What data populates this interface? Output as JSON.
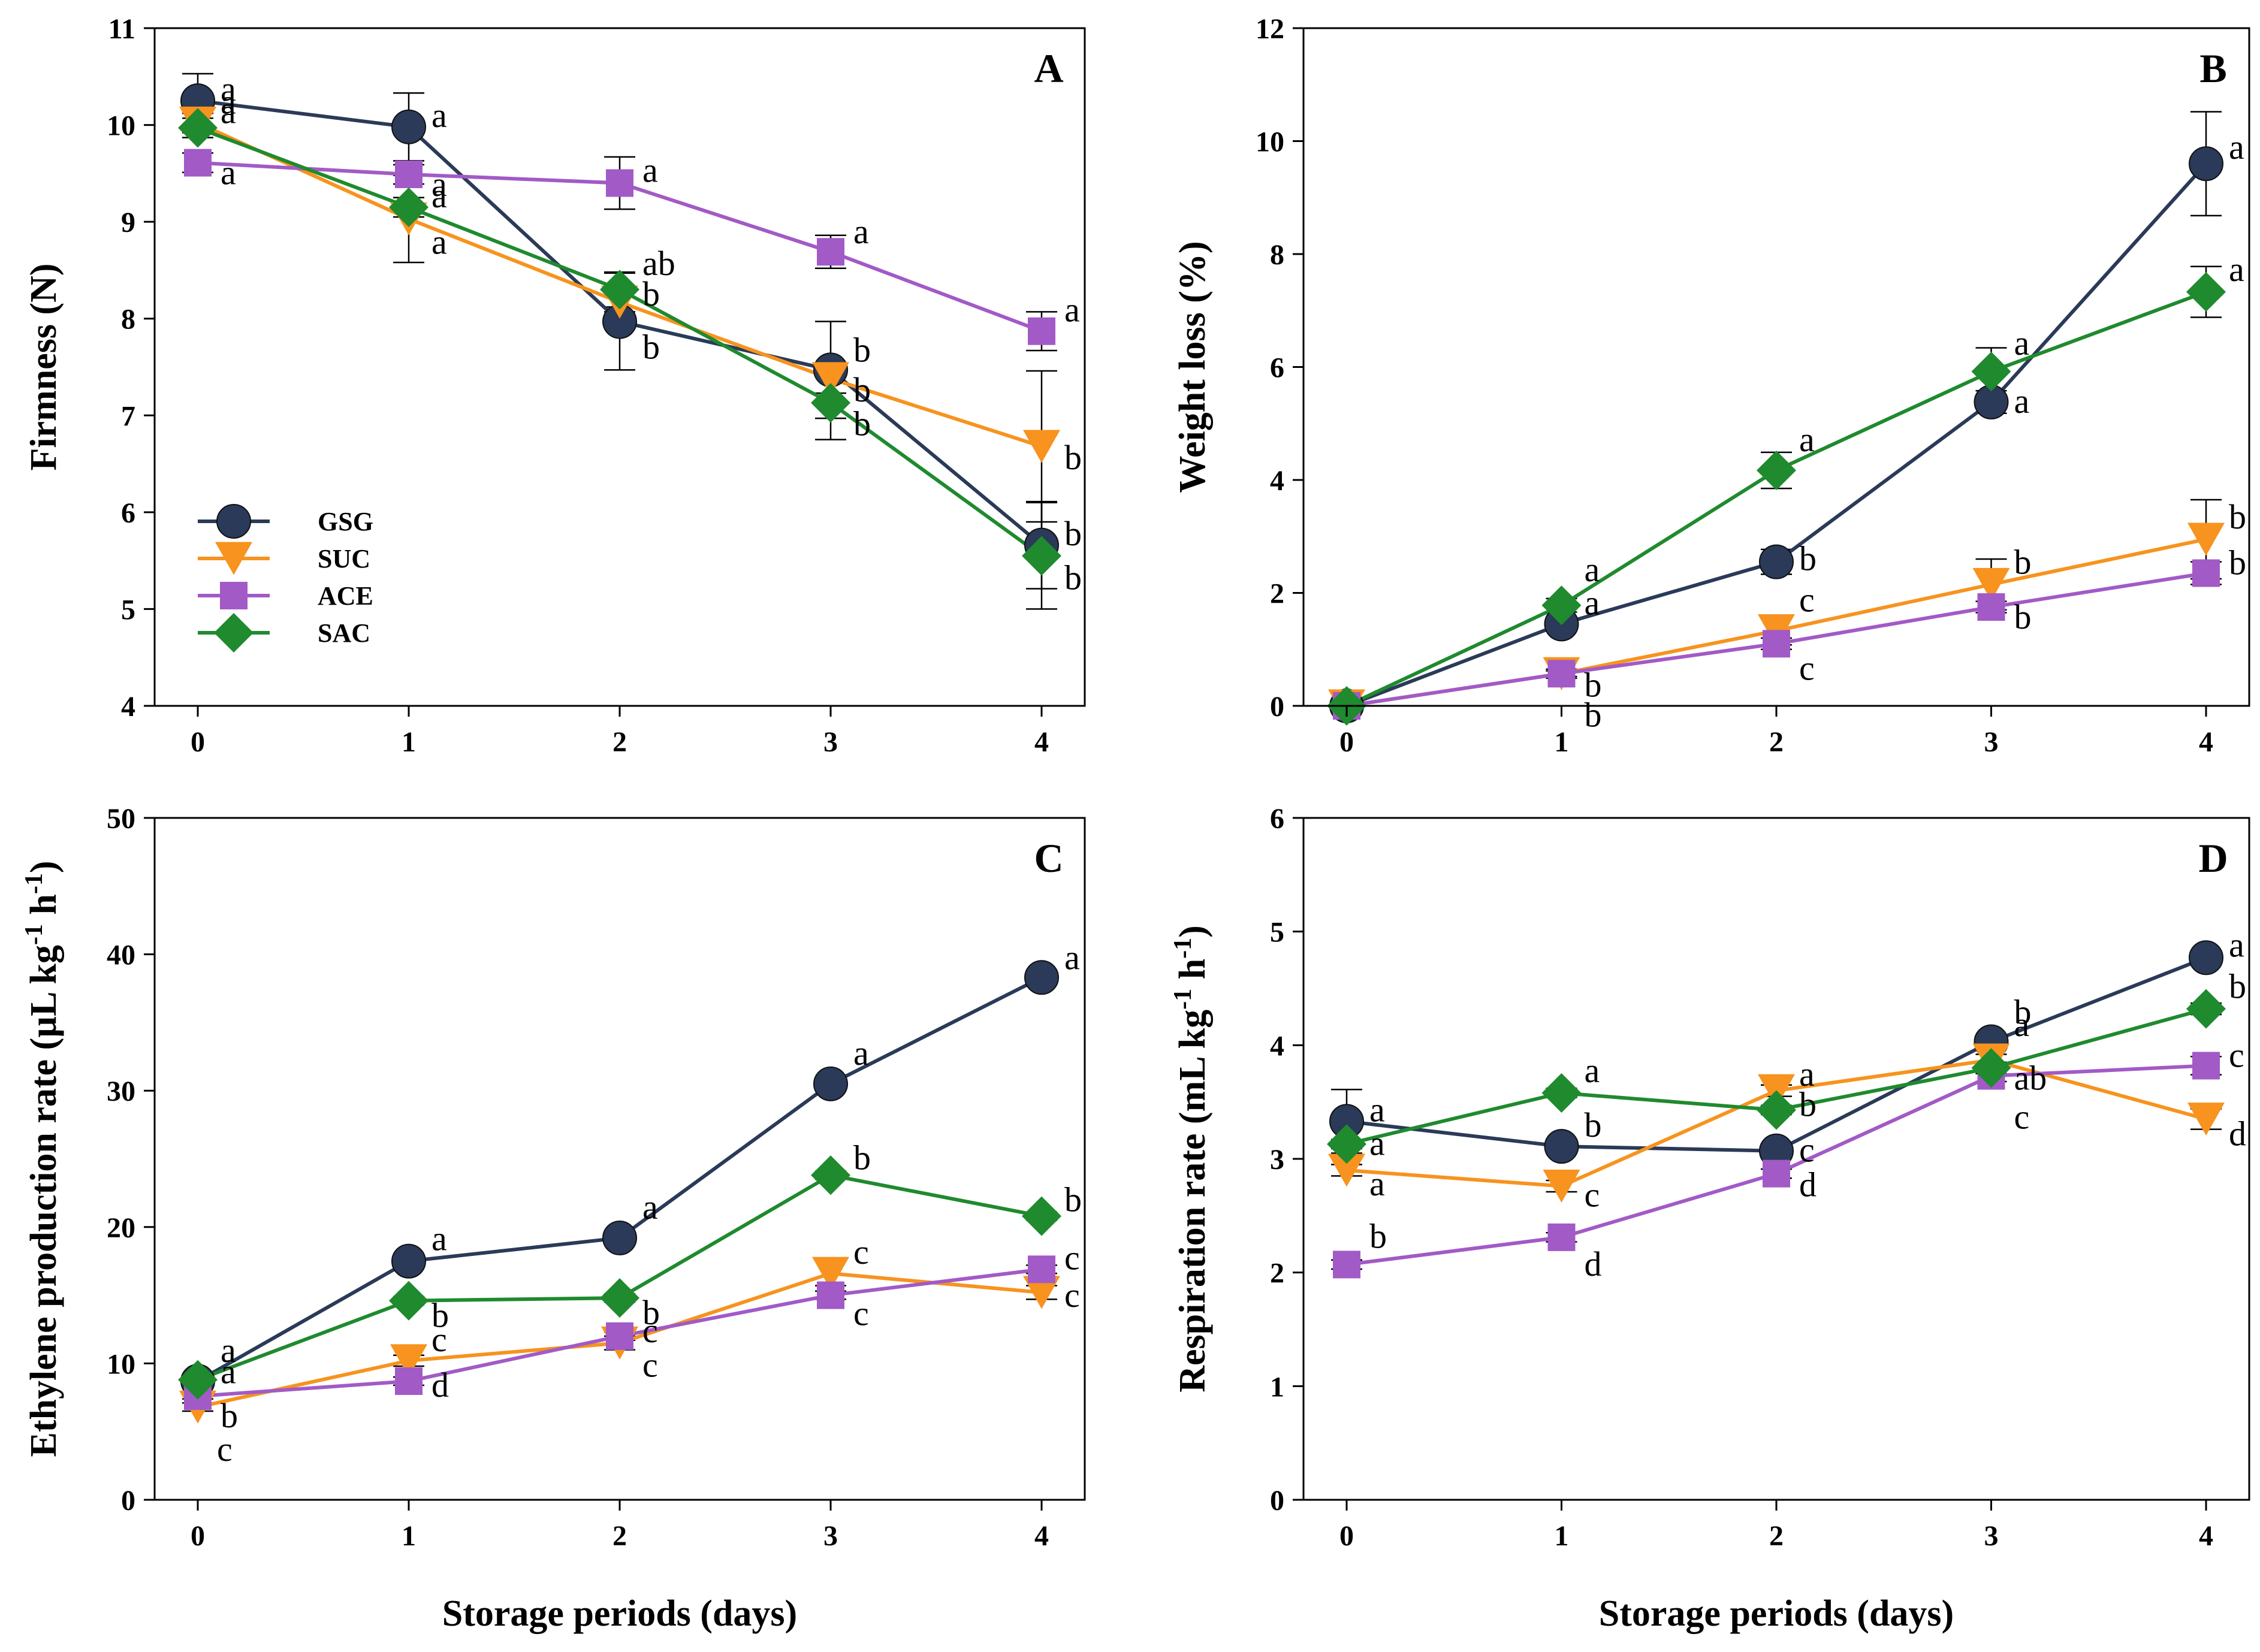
{
  "colors": {
    "GSG": "#2a3a58",
    "SUC": "#f7931e",
    "ACE": "#a25ac6",
    "SAC": "#1f8a2e"
  },
  "legend": [
    {
      "key": "GSG",
      "label": "GSG",
      "marker": "circle"
    },
    {
      "key": "SUC",
      "label": "SUC",
      "marker": "triangle-down"
    },
    {
      "key": "ACE",
      "label": "ACE",
      "marker": "square"
    },
    {
      "key": "SAC",
      "label": "SAC",
      "marker": "diamond"
    }
  ],
  "chart_data": [
    {
      "id": "A",
      "type": "line",
      "panel_letter": "A",
      "xlabel": "",
      "ylabel": "Firmness (N)",
      "x": [
        0,
        1,
        2,
        3,
        4
      ],
      "x_ticks": [
        "0",
        "1",
        "2",
        "3",
        "4"
      ],
      "ylim": [
        4,
        11
      ],
      "y_ticks": [
        4,
        5,
        6,
        7,
        8,
        9,
        10,
        11
      ],
      "series": [
        {
          "name": "GSG",
          "values": [
            10.25,
            9.98,
            7.97,
            7.47,
            5.66
          ],
          "errors": [
            0.28,
            0.35,
            0.5,
            0.5,
            0.45
          ],
          "letters": [
            "a",
            "a",
            "b",
            "b",
            "b"
          ]
        },
        {
          "name": "SUC",
          "values": [
            10.02,
            9.03,
            8.17,
            7.38,
            6.68
          ],
          "errors": [
            0.1,
            0.45,
            0.1,
            0.15,
            0.78
          ],
          "letters": [
            "a",
            "a",
            "b",
            "b",
            "b"
          ]
        },
        {
          "name": "ACE",
          "values": [
            9.61,
            9.49,
            9.4,
            8.69,
            7.87
          ],
          "errors": [
            0.1,
            0.1,
            0.27,
            0.17,
            0.2
          ],
          "letters": [
            "a",
            "a",
            "a",
            "a",
            "a"
          ]
        },
        {
          "name": "SAC",
          "values": [
            9.97,
            9.15,
            8.3,
            7.13,
            5.55
          ],
          "errors": [
            0.1,
            0.1,
            0.18,
            0.38,
            0.55
          ],
          "letters": [
            "a",
            "a",
            "ab",
            "b",
            "b"
          ]
        }
      ]
    },
    {
      "id": "B",
      "type": "line",
      "panel_letter": "B",
      "xlabel": "",
      "ylabel": "Weight loss (%)",
      "x": [
        0,
        1,
        2,
        3,
        4
      ],
      "x_ticks": [
        "0",
        "1",
        "2",
        "3",
        "4"
      ],
      "ylim": [
        0,
        12
      ],
      "y_ticks": [
        0,
        2,
        4,
        6,
        8,
        10,
        12
      ],
      "series": [
        {
          "name": "GSG",
          "values": [
            0,
            1.45,
            2.55,
            5.38,
            9.6
          ],
          "errors": [
            0,
            0.1,
            0.22,
            0.2,
            0.92
          ],
          "letters": [
            "",
            "a",
            "b",
            "a",
            "a"
          ]
        },
        {
          "name": "SUC",
          "values": [
            0,
            0.57,
            1.33,
            2.15,
            2.95
          ],
          "errors": [
            0,
            0.08,
            0.25,
            0.45,
            0.7
          ],
          "letters": [
            "",
            "b",
            "c",
            "b",
            "b"
          ]
        },
        {
          "name": "ACE",
          "values": [
            0,
            0.57,
            1.1,
            1.75,
            2.35
          ],
          "errors": [
            0,
            0.05,
            0.1,
            0.1,
            0.2
          ],
          "letters": [
            "",
            "b",
            "c",
            "b",
            "b"
          ]
        },
        {
          "name": "SAC",
          "values": [
            0,
            1.78,
            4.17,
            5.92,
            7.33
          ],
          "errors": [
            0,
            0.12,
            0.32,
            0.42,
            0.45
          ],
          "letters": [
            "",
            "a",
            "a",
            "a",
            "a"
          ]
        }
      ]
    },
    {
      "id": "C",
      "type": "line",
      "panel_letter": "C",
      "xlabel": "Storage periods (days)",
      "ylabel": "Ethylene production rate (µL kg-1 h-1)",
      "ylabel_parts": {
        "prefix": "Ethylene production rate (µL kg",
        "sup1": "-1",
        "mid": " h",
        "sup2": "-1",
        "suffix": ")"
      },
      "x": [
        0,
        1,
        2,
        3,
        4
      ],
      "x_ticks": [
        "0",
        "1",
        "2",
        "3",
        "4"
      ],
      "ylim": [
        0,
        50
      ],
      "y_ticks": [
        0,
        10,
        20,
        30,
        40,
        50
      ],
      "series": [
        {
          "name": "GSG",
          "values": [
            8.7,
            17.5,
            19.2,
            30.5,
            38.3
          ],
          "errors": [
            0.3,
            0.3,
            0.3,
            0.3,
            0.3
          ],
          "letters": [
            "a",
            "a",
            "a",
            "a",
            "a"
          ]
        },
        {
          "name": "SUC",
          "values": [
            6.8,
            10.2,
            11.5,
            16.6,
            15.2
          ],
          "errors": [
            0.3,
            0.4,
            0.5,
            0.9,
            0.5
          ],
          "letters": [
            "c",
            "c",
            "c",
            "c",
            "c"
          ]
        },
        {
          "name": "ACE",
          "values": [
            7.6,
            8.7,
            12.0,
            15.0,
            16.9
          ],
          "errors": [
            0.2,
            0.3,
            0.3,
            0.3,
            0.3
          ],
          "letters": [
            "b",
            "d",
            "c",
            "c",
            "c"
          ]
        },
        {
          "name": "SAC",
          "values": [
            8.8,
            14.6,
            14.8,
            23.8,
            20.8
          ],
          "errors": [
            0.2,
            0.3,
            0.3,
            0.3,
            0.3
          ],
          "letters": [
            "a",
            "b",
            "b",
            "b",
            "b"
          ]
        }
      ]
    },
    {
      "id": "D",
      "type": "line",
      "panel_letter": "D",
      "xlabel": "Storage periods (days)",
      "ylabel": "Respiration rate (mL kg-1 h-1)",
      "ylabel_parts": {
        "prefix": "Respiration rate (mL kg",
        "sup1": "-1",
        "mid": " h",
        "sup2": "-1",
        "suffix": ")"
      },
      "x": [
        0,
        1,
        2,
        3,
        4
      ],
      "x_ticks": [
        "0",
        "1",
        "2",
        "3",
        "4"
      ],
      "ylim": [
        0,
        6
      ],
      "y_ticks": [
        0,
        1,
        2,
        3,
        4,
        5,
        6
      ],
      "series": [
        {
          "name": "GSG",
          "values": [
            3.33,
            3.11,
            3.07,
            4.03,
            4.77
          ],
          "errors": [
            0.28,
            0.04,
            0.04,
            0.05,
            0.05
          ],
          "letters": [
            "a",
            "b",
            "c",
            "b",
            "a"
          ]
        },
        {
          "name": "SUC",
          "values": [
            2.9,
            2.76,
            3.6,
            3.87,
            3.35
          ],
          "errors": [
            0.05,
            0.05,
            0.05,
            0.05,
            0.09
          ],
          "letters": [
            "a",
            "c",
            "a",
            "a",
            "d"
          ]
        },
        {
          "name": "ACE",
          "values": [
            2.07,
            2.31,
            2.87,
            3.73,
            3.82
          ],
          "errors": [
            0.04,
            0.04,
            0.04,
            0.05,
            0.08
          ],
          "letters": [
            "b",
            "d",
            "d",
            "c",
            "c"
          ]
        },
        {
          "name": "SAC",
          "values": [
            3.13,
            3.58,
            3.43,
            3.8,
            4.32
          ],
          "errors": [
            0.04,
            0.04,
            0.04,
            0.05,
            0.05
          ],
          "letters": [
            "a",
            "a",
            "b",
            "ab",
            "b"
          ]
        }
      ]
    }
  ]
}
